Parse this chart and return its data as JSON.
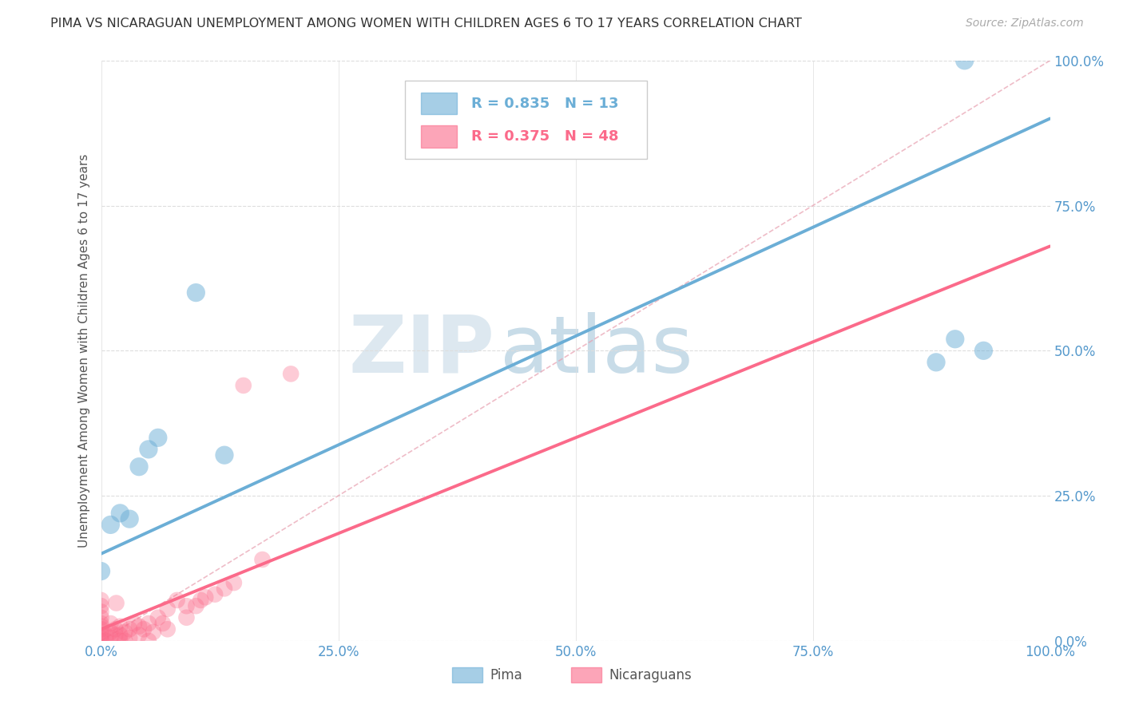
{
  "title": "PIMA VS NICARAGUAN UNEMPLOYMENT AMONG WOMEN WITH CHILDREN AGES 6 TO 17 YEARS CORRELATION CHART",
  "source": "Source: ZipAtlas.com",
  "ylabel": "Unemployment Among Women with Children Ages 6 to 17 years",
  "xlim": [
    0.0,
    1.0
  ],
  "ylim": [
    0.0,
    1.0
  ],
  "xticks": [
    0.0,
    0.25,
    0.5,
    0.75,
    1.0
  ],
  "yticks": [
    0.0,
    0.25,
    0.5,
    0.75,
    1.0
  ],
  "xticklabels": [
    "0.0%",
    "25.0%",
    "50.0%",
    "75.0%",
    "100.0%"
  ],
  "yticklabels": [
    "0.0%",
    "25.0%",
    "50.0%",
    "75.0%",
    "100.0%"
  ],
  "pima_color": "#6baed6",
  "nicaraguan_color": "#fb6a8a",
  "pima_R": 0.835,
  "pima_N": 13,
  "nicaraguan_R": 0.375,
  "nicaraguan_N": 48,
  "legend_label_pima": "Pima",
  "legend_label_nicaraguan": "Nicaraguans",
  "watermark_zip": "ZIP",
  "watermark_atlas": "atlas",
  "background_color": "#ffffff",
  "grid_color": "#dddddd",
  "pima_line_y0": 0.15,
  "pima_line_y1": 0.9,
  "nicaraguan_line_y0": 0.02,
  "nicaraguan_line_y1": 0.68,
  "pima_points_x": [
    0.0,
    0.01,
    0.02,
    0.03,
    0.04,
    0.05,
    0.06,
    0.1,
    0.13,
    0.88,
    0.9,
    0.91,
    0.93
  ],
  "pima_points_y": [
    0.12,
    0.2,
    0.22,
    0.21,
    0.3,
    0.33,
    0.35,
    0.6,
    0.32,
    0.48,
    0.52,
    1.0,
    0.5
  ],
  "nicaraguan_points_x": [
    0.0,
    0.0,
    0.0,
    0.0,
    0.0,
    0.0,
    0.0,
    0.0,
    0.0,
    0.0,
    0.005,
    0.005,
    0.01,
    0.01,
    0.01,
    0.015,
    0.015,
    0.016,
    0.02,
    0.02,
    0.02,
    0.025,
    0.025,
    0.03,
    0.03,
    0.035,
    0.04,
    0.04,
    0.045,
    0.05,
    0.05,
    0.055,
    0.06,
    0.065,
    0.07,
    0.07,
    0.08,
    0.09,
    0.09,
    0.1,
    0.105,
    0.11,
    0.12,
    0.13,
    0.14,
    0.15,
    0.17,
    0.2
  ],
  "nicaraguan_points_y": [
    0.0,
    0.005,
    0.01,
    0.02,
    0.025,
    0.03,
    0.04,
    0.05,
    0.06,
    0.07,
    0.0,
    0.01,
    0.005,
    0.015,
    0.03,
    0.01,
    0.02,
    0.065,
    0.0,
    0.01,
    0.025,
    0.0,
    0.015,
    0.005,
    0.02,
    0.03,
    0.01,
    0.025,
    0.02,
    0.0,
    0.03,
    0.015,
    0.04,
    0.03,
    0.02,
    0.055,
    0.07,
    0.04,
    0.06,
    0.06,
    0.07,
    0.075,
    0.08,
    0.09,
    0.1,
    0.44,
    0.14,
    0.46
  ]
}
